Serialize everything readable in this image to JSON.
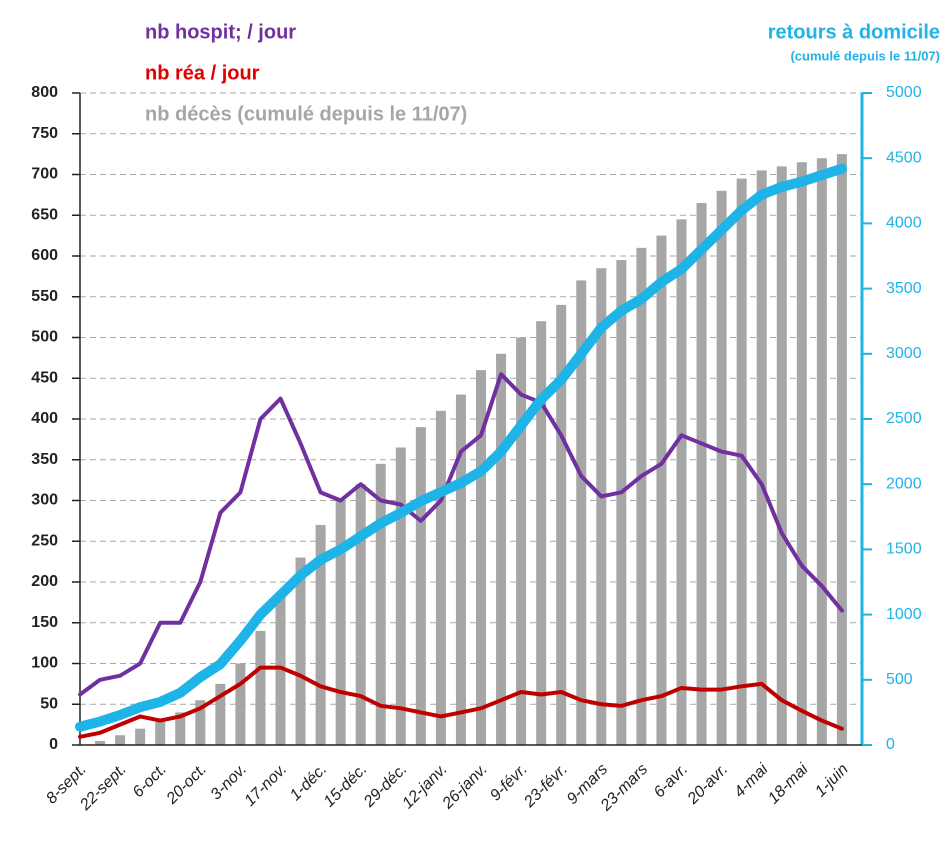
{
  "chart_data": {
    "type": "combo",
    "categories": [
      "8-sept.",
      null,
      "22-sept.",
      null,
      "6-oct.",
      null,
      "20-oct.",
      null,
      "3-nov.",
      null,
      "17-nov.",
      null,
      "1-déc.",
      null,
      "15-déc.",
      null,
      "29-déc.",
      null,
      "12-janv.",
      null,
      "26-janv.",
      null,
      "9-févr.",
      null,
      "23-févr.",
      null,
      "9-mars",
      null,
      "23-mars",
      null,
      "6-avr.",
      null,
      "20-avr.",
      null,
      "4-mai",
      null,
      "18-mai",
      null,
      "1-juin"
    ],
    "series": [
      {
        "name": "nb hospit; / jour",
        "type": "line",
        "color": "#7030a0",
        "values": [
          62,
          80,
          85,
          100,
          150,
          150,
          200,
          285,
          310,
          400,
          425,
          370,
          310,
          300,
          320,
          300,
          295,
          275,
          300,
          360,
          380,
          455,
          430,
          420,
          380,
          330,
          305,
          310,
          330,
          345,
          380,
          370,
          360,
          355,
          320,
          260,
          220,
          195,
          165
        ]
      },
      {
        "name": "nb réa / jour",
        "type": "line",
        "color": "#c00000",
        "values": [
          10,
          15,
          25,
          35,
          30,
          35,
          45,
          60,
          75,
          95,
          95,
          85,
          72,
          65,
          60,
          48,
          45,
          40,
          35,
          40,
          45,
          55,
          65,
          62,
          65,
          55,
          50,
          48,
          55,
          60,
          70,
          68,
          68,
          72,
          75,
          55,
          42,
          30,
          20
        ]
      },
      {
        "name": "nb décès (cumulé depuis le 11/07)",
        "type": "bar",
        "color": "#a6a6a6",
        "values": [
          0,
          5,
          12,
          20,
          30,
          40,
          55,
          75,
          100,
          140,
          185,
          230,
          270,
          300,
          320,
          345,
          365,
          390,
          410,
          430,
          460,
          480,
          500,
          520,
          540,
          570,
          585,
          595,
          610,
          625,
          645,
          665,
          680,
          695,
          705,
          710,
          715,
          720,
          725
        ]
      },
      {
        "name": "retours à domicile",
        "type": "line",
        "axis": "y2",
        "color": "#1fb4e8",
        "values": [
          140,
          180,
          230,
          290,
          330,
          400,
          520,
          620,
          800,
          1000,
          1150,
          1300,
          1420,
          1500,
          1600,
          1700,
          1780,
          1870,
          1940,
          2010,
          2100,
          2250,
          2450,
          2650,
          2800,
          3000,
          3200,
          3330,
          3420,
          3550,
          3650,
          3800,
          3950,
          4100,
          4220,
          4280,
          4320,
          4370,
          4420
        ]
      }
    ],
    "y2_note": "(cumulé depuis le 11/07)",
    "ylim": [
      0,
      800
    ],
    "yticks": [
      0,
      50,
      100,
      150,
      200,
      250,
      300,
      350,
      400,
      450,
      500,
      550,
      600,
      650,
      700,
      750,
      800
    ],
    "y2lim": [
      0,
      5000
    ],
    "y2ticks": [
      0,
      500,
      1000,
      1500,
      2000,
      2500,
      3000,
      3500,
      4000,
      4500,
      5000
    ],
    "grid": true
  }
}
